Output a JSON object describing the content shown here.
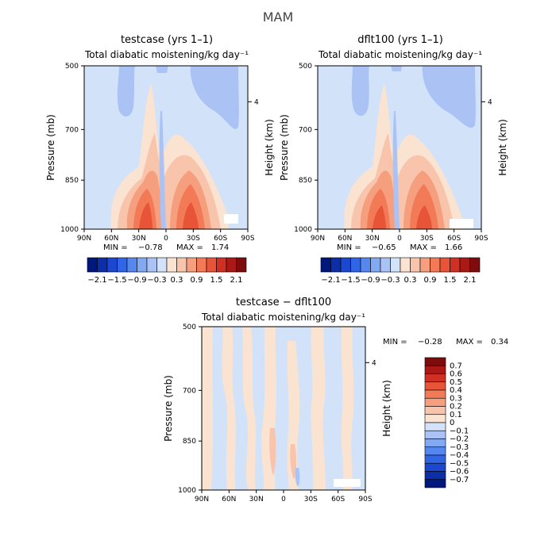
{
  "figure_title": "MAM",
  "chart_data": [
    {
      "type": "heatmap",
      "title": "testcase (yrs 1–1)",
      "subtitle": "Total diabatic moistening/kg day⁻¹",
      "ylabel": "Pressure (mb)",
      "y2label": "Height (km)",
      "x_ticks": [
        "90N",
        "60N",
        "30N",
        "0",
        "30S",
        "60S",
        "90S"
      ],
      "y_ticks": [
        "500",
        "700",
        "850",
        "1000"
      ],
      "y2_ticks": [
        "4"
      ],
      "min_label": "MIN =",
      "min_value": "−0.78",
      "max_label": "MAX =",
      "max_value": "1.74",
      "colorbar": {
        "labels": [
          "−2.1",
          "−1.5",
          "−0.9",
          "−0.3",
          "0.3",
          "0.9",
          "1.5",
          "2.1"
        ],
        "colors": [
          "#00177e",
          "#0c2ea8",
          "#1c47cf",
          "#3065e6",
          "#5587ef",
          "#82a9f2",
          "#aac3f4",
          "#d2e3f9",
          "#fbe3d1",
          "#f8c5ac",
          "#f59f7e",
          "#f27a56",
          "#e75438",
          "#cf3023",
          "#ac1815",
          "#7f0c0c"
        ]
      }
    },
    {
      "type": "heatmap",
      "title": "dflt100 (yrs 1–1)",
      "subtitle": "Total diabatic moistening/kg day⁻¹",
      "ylabel": "Pressure (mb)",
      "y2label": "Height (km)",
      "x_ticks": [
        "90N",
        "60N",
        "30N",
        "0",
        "30S",
        "60S",
        "90S"
      ],
      "y_ticks": [
        "500",
        "700",
        "850",
        "1000"
      ],
      "y2_ticks": [
        "4"
      ],
      "min_label": "MIN =",
      "min_value": "−0.65",
      "max_label": "MAX =",
      "max_value": "1.66",
      "colorbar": {
        "labels": [
          "−2.1",
          "−1.5",
          "−0.9",
          "−0.3",
          "0.3",
          "0.9",
          "1.5",
          "2.1"
        ],
        "colors": [
          "#00177e",
          "#0c2ea8",
          "#1c47cf",
          "#3065e6",
          "#5587ef",
          "#82a9f2",
          "#aac3f4",
          "#d2e3f9",
          "#fbe3d1",
          "#f8c5ac",
          "#f59f7e",
          "#f27a56",
          "#e75438",
          "#cf3023",
          "#ac1815",
          "#7f0c0c"
        ]
      }
    },
    {
      "type": "heatmap",
      "title": "testcase − dflt100",
      "subtitle": "Total diabatic moistening/kg day⁻¹",
      "ylabel": "Pressure (mb)",
      "y2label": "Height (km)",
      "x_ticks": [
        "90N",
        "60N",
        "30N",
        "0",
        "30S",
        "60S",
        "90S"
      ],
      "y_ticks": [
        "500",
        "700",
        "850",
        "1000"
      ],
      "y2_ticks": [
        "4"
      ],
      "min_label": "MIN =",
      "min_value": "−0.28",
      "max_label": "MAX =",
      "max_value": "0.34",
      "colorbar": {
        "labels": [
          "0.7",
          "0.6",
          "0.5",
          "0.4",
          "0.3",
          "0.2",
          "0.1",
          "0",
          "−0.1",
          "−0.2",
          "−0.3",
          "−0.4",
          "−0.5",
          "−0.6",
          "−0.7"
        ],
        "colors": [
          "#7f0c0c",
          "#ac1815",
          "#cf3023",
          "#e75438",
          "#f27a56",
          "#f59f7e",
          "#f8c5ac",
          "#fbe3d1",
          "#d2e3f9",
          "#aac3f4",
          "#82a9f2",
          "#5587ef",
          "#3065e6",
          "#1c47cf",
          "#0c2ea8",
          "#00177e"
        ]
      }
    }
  ]
}
